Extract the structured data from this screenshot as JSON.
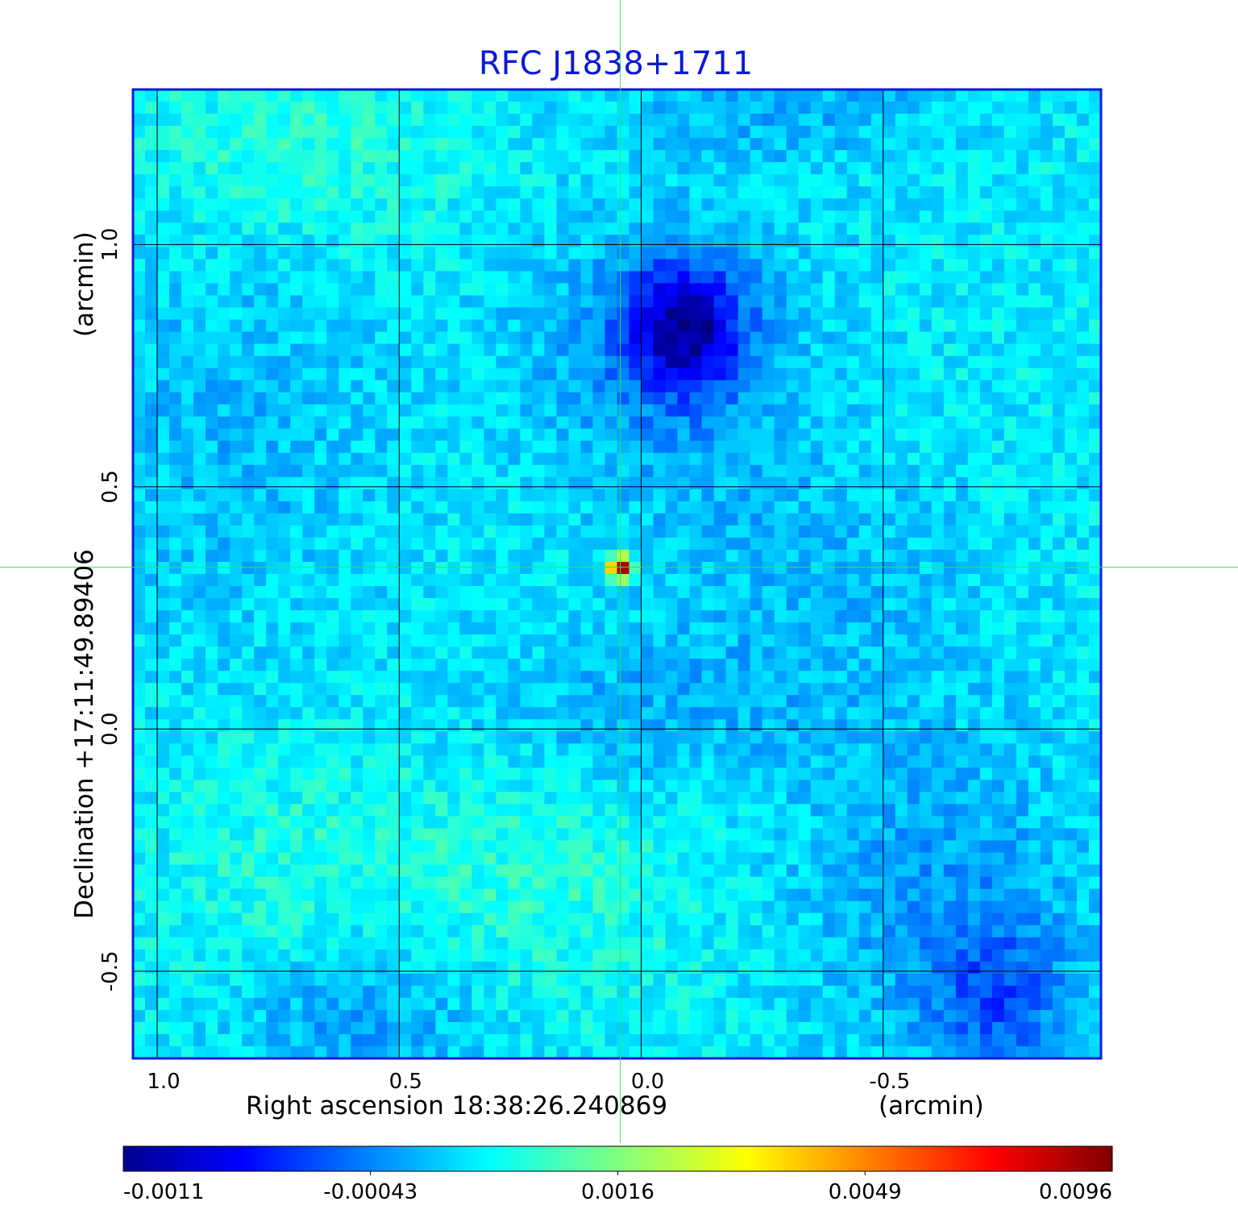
{
  "chart_data": {
    "type": "heatmap",
    "title": "RFC J1838+1711",
    "xlabel": "Right ascension  18:38:26.240869",
    "xlabel_unit": "(arcmin)",
    "ylabel": "Declination  +17:11:49.89406",
    "ylabel_unit": "(arcmin)",
    "xlim": [
      1.05,
      -0.95
    ],
    "ylim": [
      -0.68,
      1.32
    ],
    "x_ticks": [
      1.0,
      0.5,
      0.0,
      -0.5
    ],
    "x_tick_labels": [
      "1.0",
      "0.5",
      "0.0",
      "-0.5"
    ],
    "y_ticks": [
      1.0,
      0.5,
      0.0,
      -0.5
    ],
    "y_tick_labels": [
      "1.0",
      "0.5",
      "0.0",
      "-0.5"
    ],
    "grid": true,
    "crosshair": {
      "x": 0.043,
      "y": 0.334
    },
    "colormap": "jet",
    "colorbar": {
      "placement": "bottom",
      "range": [
        -0.0011,
        0.0096
      ],
      "tick_labels": [
        "-0.0011",
        "-0.00043",
        "0.0016",
        "0.0049",
        "0.0096"
      ]
    },
    "features": [
      {
        "kind": "point-source",
        "x": 0.043,
        "y": 0.334,
        "value": 0.0096
      },
      {
        "kind": "negative-patch",
        "x": -0.09,
        "y": 0.83,
        "value": -0.0011
      },
      {
        "kind": "negative-patch",
        "x": -0.74,
        "y": -0.57,
        "value": -0.0008
      },
      {
        "kind": "negative-patch",
        "x": 0.6,
        "y": -0.55,
        "value": -0.0007
      }
    ]
  },
  "colors": {
    "title": "#0a1bd6",
    "frame": "#0a1bd6",
    "grid": "#000000",
    "crosshair": "#2ee84a"
  }
}
